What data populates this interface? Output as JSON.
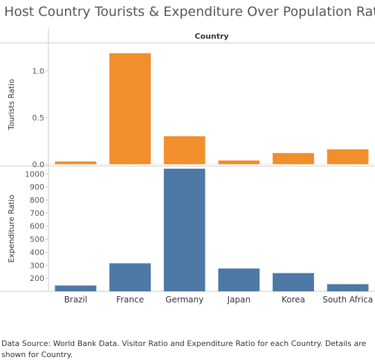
{
  "title": "Host Country Tourists & Expenditure Over Population Ratio",
  "footnote": "Data Source: World Bank Data. Visitor Ratio and Expenditure Ratio for each Country.  Details are shown for Country.",
  "chart_data": {
    "type": "bar",
    "column_header": "Country",
    "categories": [
      "Brazil",
      "France",
      "Germany",
      "Japan",
      "Korea",
      "South Africa"
    ],
    "colors": {
      "tourists": "#f28e2b",
      "expenditure": "#4e79a7"
    },
    "panels": [
      {
        "ylabel": "Tourists Ratio",
        "series_key": "tourists",
        "values": [
          0.03,
          1.19,
          0.3,
          0.04,
          0.12,
          0.16
        ],
        "ylim": [
          -0.02,
          1.3
        ],
        "ticks": [
          0.0,
          0.5,
          1.0
        ],
        "tick_labels": [
          "0.0",
          "0.5",
          "1.0"
        ],
        "grid": false
      },
      {
        "ylabel": "Expenditure Ratio",
        "series_key": "expenditure",
        "values": [
          145,
          315,
          1040,
          275,
          240,
          155
        ],
        "ylim": [
          100,
          1060
        ],
        "ticks": [
          200,
          300,
          400,
          500,
          600,
          700,
          800,
          900,
          1000
        ],
        "tick_labels": [
          "200",
          "300",
          "400",
          "500",
          "600",
          "700",
          "800",
          "900",
          "1000"
        ],
        "grid": false
      }
    ]
  }
}
